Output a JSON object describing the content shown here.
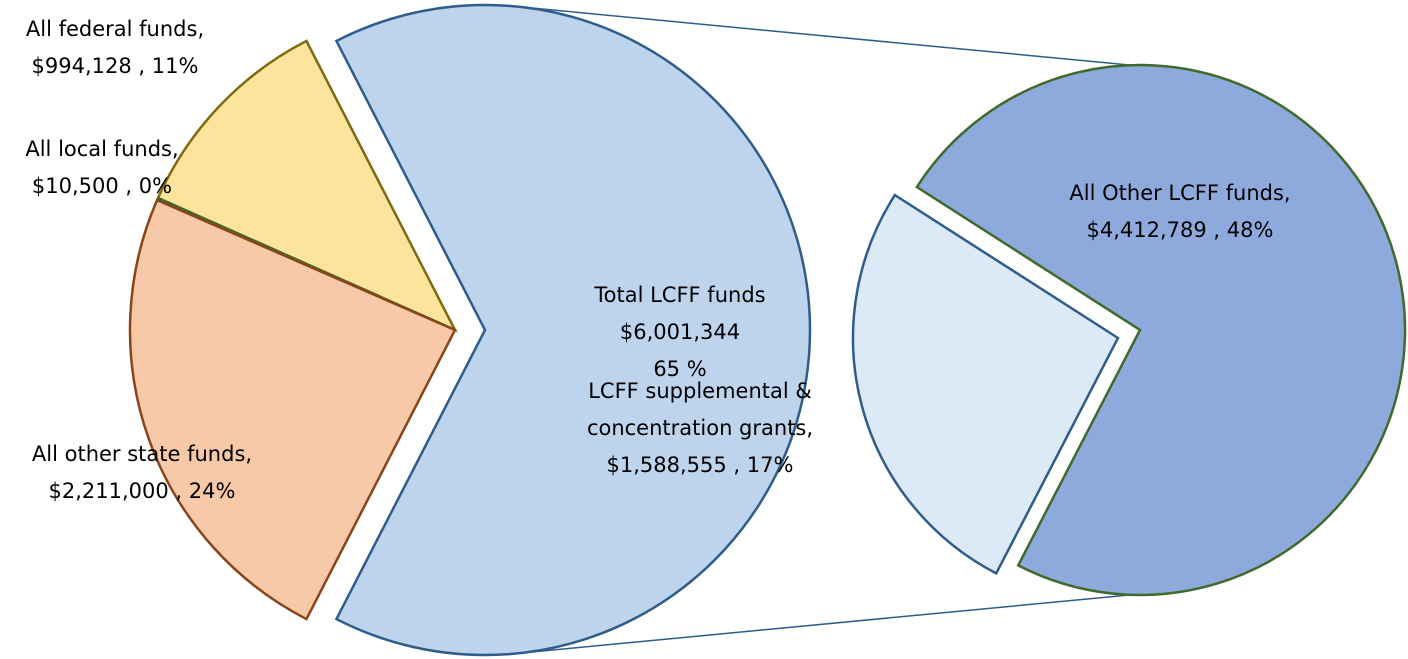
{
  "chart_data": {
    "type": "pie-of-pie",
    "categories": [
      "Total LCFF funds",
      "All federal funds,",
      "All local funds,",
      "All other state funds,"
    ],
    "values": [
      6001344,
      994128,
      10500,
      2211000
    ],
    "value_labels": [
      [
        "$6,001,344",
        "65 %"
      ],
      [
        "$994,128 , 11%"
      ],
      [
        "$10,500 , 0%"
      ],
      [
        "$2,211,000 , 24%"
      ]
    ],
    "colors": [
      "#bed4ed",
      "#fde49c",
      "#4f7b3b",
      "#f8c9a9"
    ],
    "edge_colors": [
      "#2f5d8b",
      "#7f6a12",
      "#3f6a2b",
      "#8a4418"
    ],
    "secondary": {
      "categories": [
        "All Other LCFF funds,",
        "LCFF supplemental &"
      ],
      "values": [
        4412789,
        1588555
      ],
      "value_labels": [
        [
          "$4,412,789 , 48%"
        ],
        [
          "concentration grants,",
          "$1,588,555 , 17%"
        ]
      ],
      "colors": [
        "#8eaadc",
        "#dce9f6"
      ],
      "edge_colors": [
        "#3f6a2b",
        "#2f5d8b"
      ]
    }
  }
}
